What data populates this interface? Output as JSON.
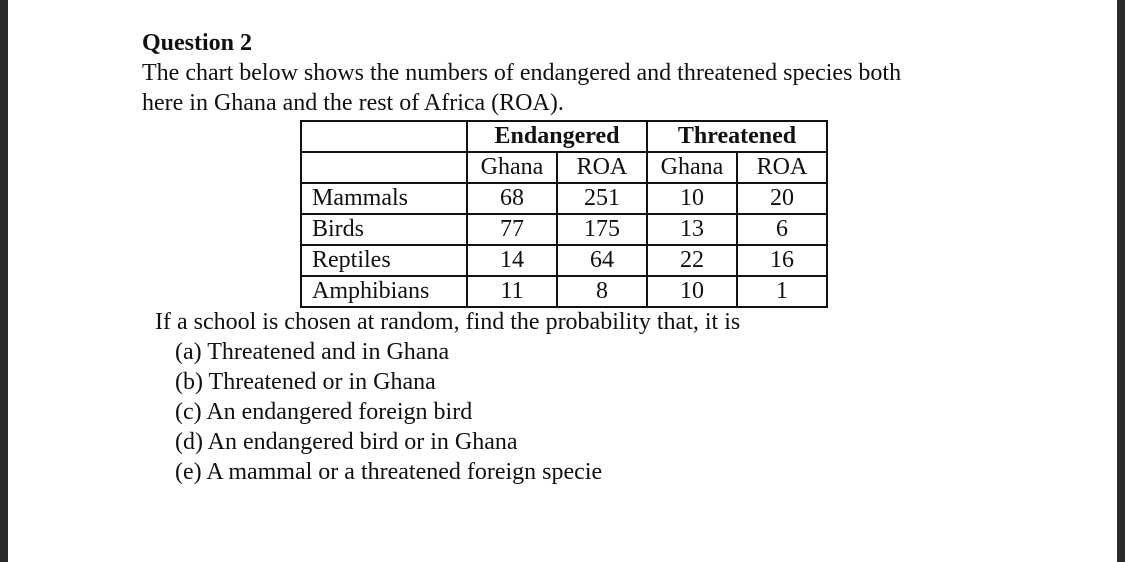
{
  "question": {
    "title": "Question 2",
    "intro_line1": "The chart below shows the numbers of endangered and threatened species both",
    "intro_line2": "here in Ghana and the rest of Africa (ROA)."
  },
  "table": {
    "groups": [
      "Endangered",
      "Threatened"
    ],
    "subheaders": [
      "Ghana",
      "ROA",
      "Ghana",
      "ROA"
    ],
    "rows": [
      {
        "label": "Mammals",
        "values": [
          "68",
          "251",
          "10",
          "20"
        ]
      },
      {
        "label": "Birds",
        "values": [
          "77",
          "175",
          "13",
          "6"
        ]
      },
      {
        "label": "Reptiles",
        "values": [
          "14",
          "64",
          "22",
          "16"
        ]
      },
      {
        "label": "Amphibians",
        "values": [
          "11",
          "8",
          "10",
          "1"
        ]
      }
    ]
  },
  "prompt": "If a school is chosen at random, find the probability that, it is",
  "options": [
    "(a) Threatened and in Ghana",
    "(b) Threatened or in Ghana",
    "(c) An endangered foreign bird",
    "(d) An endangered bird or in Ghana",
    "(e) A mammal or a threatened foreign specie"
  ]
}
